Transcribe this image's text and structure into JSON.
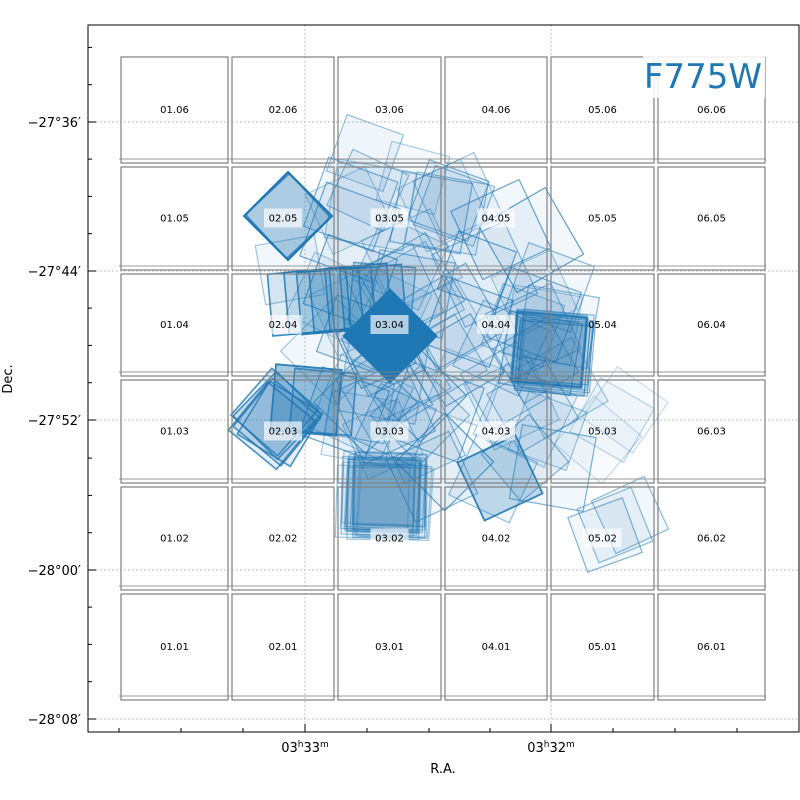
{
  "chart_data": {
    "type": "scatter",
    "filter_label": "F775W",
    "xlabel": "R.A.",
    "ylabel": "Dec.",
    "x_ticks": [
      {
        "label": "03h33m",
        "hours": "03",
        "minutes": "33"
      },
      {
        "label": "03h32m",
        "hours": "03",
        "minutes": "32"
      }
    ],
    "y_ticks": [
      {
        "label": "−27°36′",
        "value": -27.6
      },
      {
        "label": "−27°44′",
        "value": -27.7333
      },
      {
        "label": "−27°52′",
        "value": -27.8667
      },
      {
        "label": "−28°00′",
        "value": -28.0
      },
      {
        "label": "−28°08′",
        "value": -28.1333
      }
    ],
    "grid": true,
    "tile_grid": {
      "columns": 6,
      "rows": 6
    },
    "tiles": [
      "01.06",
      "02.06",
      "03.06",
      "04.06",
      "05.06",
      "06.06",
      "01.05",
      "02.05",
      "03.05",
      "04.05",
      "05.05",
      "06.05",
      "01.04",
      "02.04",
      "03.04",
      "04.04",
      "05.04",
      "06.04",
      "01.03",
      "02.03",
      "03.03",
      "04.03",
      "05.03",
      "06.03",
      "01.02",
      "02.02",
      "03.02",
      "04.02",
      "05.02",
      "06.02",
      "01.01",
      "02.01",
      "03.01",
      "04.01",
      "05.01",
      "06.01"
    ],
    "highlighted_tiles": [
      "02.05",
      "02.04",
      "03.04",
      "04.04",
      "02.03",
      "03.03",
      "04.03",
      "03.05",
      "04.05",
      "03.02",
      "05.02"
    ],
    "colors": {
      "footprint": "#1f77b4",
      "tile_outline": "#808080",
      "grid": "#b0b0b0"
    }
  }
}
